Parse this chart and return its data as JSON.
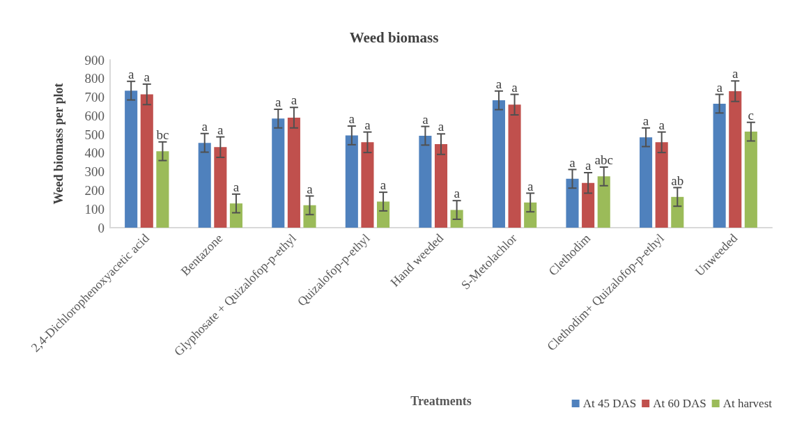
{
  "chart_data": {
    "type": "bar",
    "title": "Weed biomass",
    "xlabel": "Treatments",
    "ylabel": "Weed biomass per plot",
    "categories": [
      "2,4-Dichlorophenoxyacetic acid",
      "Bentazone",
      "Glyphosate + Quizalofop-p-ethyl",
      "Quizalofop-p-ethyl",
      "Hand weeded",
      "S-Metolachlor",
      "Clethodim",
      "Clethodim+ Quizalofop-p-ethyl",
      "Unweeded"
    ],
    "series": [
      {
        "name": "At 45 DAS",
        "color": "#4f81bd",
        "values": [
          735,
          455,
          585,
          495,
          493,
          683,
          262,
          485,
          665
        ],
        "errors": [
          50,
          50,
          50,
          50,
          50,
          50,
          50,
          50,
          50
        ],
        "value_labels": [
          "a",
          "a",
          "a",
          "a",
          "a",
          "a",
          "a",
          "a",
          "a"
        ]
      },
      {
        "name": "At 60 DAS",
        "color": "#c0504d",
        "values": [
          715,
          432,
          590,
          458,
          448,
          660,
          240,
          458,
          732
        ],
        "errors": [
          55,
          55,
          55,
          55,
          55,
          55,
          55,
          55,
          55
        ],
        "value_labels": [
          "a",
          "a",
          "a",
          "a",
          "a",
          "a",
          "a",
          "a",
          "a"
        ]
      },
      {
        "name": "At harvest",
        "color": "#9bbb59",
        "values": [
          410,
          130,
          120,
          140,
          95,
          135,
          275,
          165,
          515
        ],
        "errors": [
          50,
          50,
          50,
          50,
          50,
          50,
          50,
          50,
          50
        ],
        "value_labels": [
          "bc",
          "a",
          "a",
          "a",
          "a",
          "a",
          "abc",
          "ab",
          "c"
        ]
      }
    ],
    "ylim": [
      0,
      900
    ],
    "yticks": [
      0,
      100,
      200,
      300,
      400,
      500,
      600,
      700,
      800,
      900
    ],
    "grid": false,
    "legend": "bottom right"
  }
}
